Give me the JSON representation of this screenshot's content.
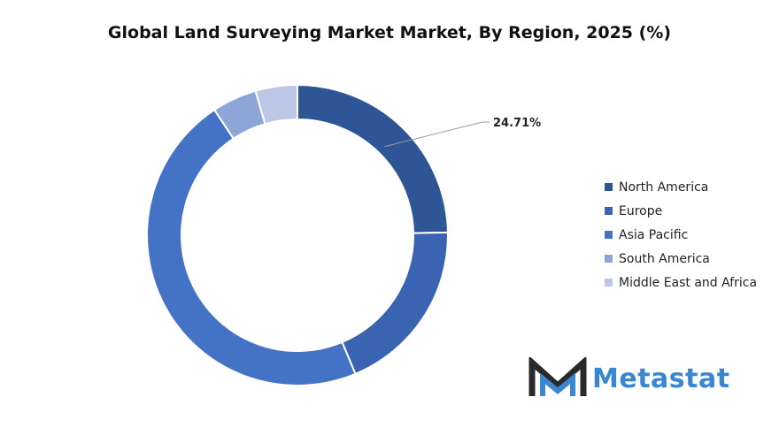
{
  "chart_data": {
    "type": "pie",
    "title": "Global Land Surveying Market Market, By Region, 2025 (%)",
    "donut": true,
    "categories": [
      "North America",
      "Europe",
      "Asia Pacific",
      "South America",
      "Middle East and Africa"
    ],
    "values": [
      24.71,
      19.0,
      47.0,
      4.8,
      4.5
    ],
    "colors": [
      "#2e5596",
      "#3a64b2",
      "#4472c4",
      "#8ea5d8",
      "#bcc7e8"
    ],
    "data_labels": [
      {
        "category": "North America",
        "text": "24.71%"
      }
    ],
    "legend_position": "right"
  },
  "brand": {
    "name": "Metastat"
  }
}
